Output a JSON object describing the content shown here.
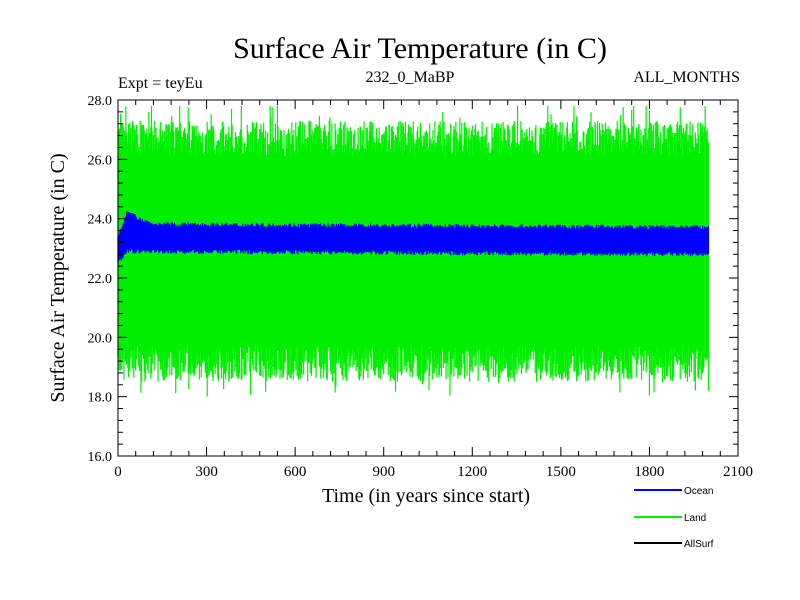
{
  "chart_data": {
    "type": "line",
    "title": "Surface Air Temperature (in C)",
    "subtitle_left": "Expt = teyEu",
    "subtitle_center": "232_0_MaBP",
    "subtitle_right": "ALL_MONTHS",
    "xlabel": "Time (in years since start)",
    "ylabel": "Surface Air Temperature (in C)",
    "xlim": [
      0,
      2100
    ],
    "ylim": [
      16.0,
      28.0
    ],
    "x_ticks": [
      0,
      300,
      600,
      900,
      1200,
      1500,
      1800,
      2100
    ],
    "x_tick_labels": [
      "0",
      "300",
      "600",
      "900",
      "1200",
      "1500",
      "1800",
      "2100"
    ],
    "y_ticks": [
      16,
      18,
      20,
      22,
      24,
      26,
      28
    ],
    "y_tick_labels": [
      "16.0",
      "18.0",
      "20.0",
      "22.0",
      "24.0",
      "26.0",
      "28.0"
    ],
    "grid": false,
    "legend_position": "bottom-right",
    "series": [
      {
        "name": "Ocean",
        "color": "#0000ff",
        "x_range": [
          0,
          2000
        ],
        "band": {
          "start_low": 22.5,
          "start_high": 23.4,
          "peak_high": 24.2,
          "low": 22.9,
          "high": 23.8,
          "end_low": 22.8,
          "end_high": 23.7
        }
      },
      {
        "name": "Land",
        "color": "#00ee00",
        "x_range": [
          0,
          2000
        ],
        "band": {
          "start_low": 18.8,
          "low": 18.8,
          "high": 27.0,
          "min": 17.9,
          "max": 27.8
        }
      },
      {
        "name": "AllSurf",
        "color": "#000000",
        "x_range": [
          0,
          2000
        ]
      }
    ]
  }
}
